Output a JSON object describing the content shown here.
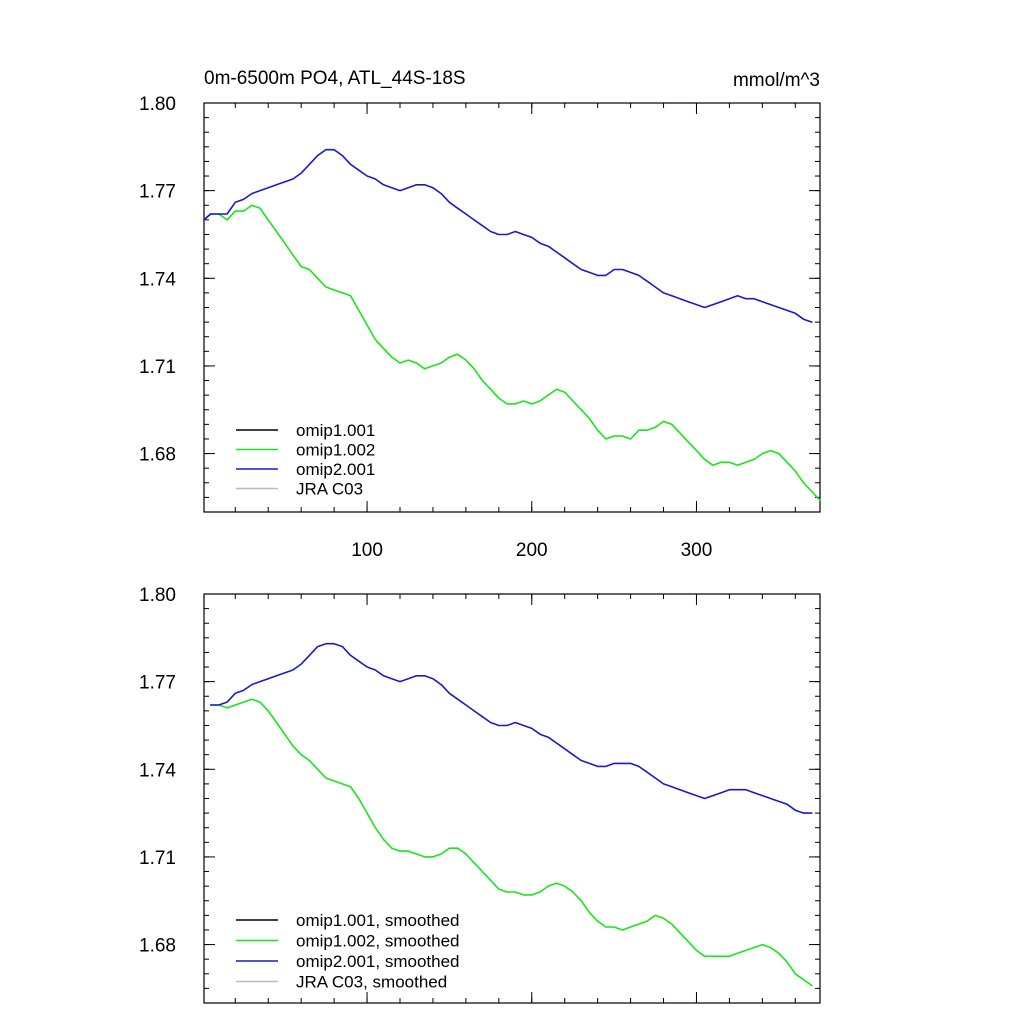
{
  "chart_data": [
    {
      "type": "line",
      "title": "0m-6500m PO4, ATL_44S-18S",
      "units": "mmol/m^3",
      "xlim": [
        1,
        375
      ],
      "ylim": [
        1.66,
        1.8
      ],
      "xticks": [
        100,
        200,
        300
      ],
      "xtick_labels": [
        "100",
        "200",
        "300"
      ],
      "yticks": [
        1.8,
        1.77,
        1.74,
        1.71,
        1.68
      ],
      "ytick_labels": [
        "1.80",
        "1.77",
        "1.74",
        "1.71",
        "1.68"
      ],
      "legend_position": "bottom-left",
      "series": [
        {
          "name": "omip1.001",
          "color": "#000000",
          "style": "raw",
          "visible": false,
          "x": [
            1,
            5,
            10,
            15,
            20,
            25,
            30,
            35,
            40,
            45,
            50,
            55,
            60,
            65,
            70,
            75,
            80,
            85,
            90,
            95,
            100,
            105,
            110,
            115,
            120,
            125,
            130,
            135,
            140,
            145,
            150,
            155,
            160,
            165,
            170,
            175,
            180,
            185,
            190,
            195,
            200,
            205,
            210,
            215,
            220,
            225,
            230,
            235,
            240,
            245,
            250,
            255,
            260,
            265,
            270,
            275,
            280,
            285,
            290,
            295,
            300,
            305,
            310,
            315,
            320,
            325,
            330,
            335,
            340,
            345,
            350,
            355,
            360,
            365,
            370,
            375
          ],
          "values": [
            1.76,
            1.762,
            1.762,
            1.76,
            1.763,
            1.763,
            1.765,
            1.764,
            1.76,
            1.756,
            1.752,
            1.748,
            1.744,
            1.743,
            1.74,
            1.737,
            1.736,
            1.735,
            1.734,
            1.729,
            1.724,
            1.719,
            1.716,
            1.713,
            1.711,
            1.712,
            1.711,
            1.709,
            1.71,
            1.711,
            1.713,
            1.714,
            1.712,
            1.709,
            1.705,
            1.702,
            1.699,
            1.697,
            1.697,
            1.698,
            1.697,
            1.698,
            1.7,
            1.702,
            1.701,
            1.698,
            1.695,
            1.692,
            1.688,
            1.685,
            1.686,
            1.686,
            1.685,
            1.688,
            1.688,
            1.689,
            1.691,
            1.69,
            1.687,
            1.684,
            1.681,
            1.678,
            1.676,
            1.677,
            1.677,
            1.676,
            1.677,
            1.678,
            1.68,
            1.681,
            1.68,
            1.677,
            1.674,
            1.67,
            1.667,
            1.664
          ]
        },
        {
          "name": "omip1.002",
          "color": "#19e619",
          "style": "raw",
          "visible": true,
          "x": [
            1,
            5,
            10,
            15,
            20,
            25,
            30,
            35,
            40,
            45,
            50,
            55,
            60,
            65,
            70,
            75,
            80,
            85,
            90,
            95,
            100,
            105,
            110,
            115,
            120,
            125,
            130,
            135,
            140,
            145,
            150,
            155,
            160,
            165,
            170,
            175,
            180,
            185,
            190,
            195,
            200,
            205,
            210,
            215,
            220,
            225,
            230,
            235,
            240,
            245,
            250,
            255,
            260,
            265,
            270,
            275,
            280,
            285,
            290,
            295,
            300,
            305,
            310,
            315,
            320,
            325,
            330,
            335,
            340,
            345,
            350,
            355,
            360,
            365,
            370,
            375
          ],
          "values": [
            1.76,
            1.762,
            1.762,
            1.76,
            1.763,
            1.763,
            1.765,
            1.764,
            1.76,
            1.756,
            1.752,
            1.748,
            1.744,
            1.743,
            1.74,
            1.737,
            1.736,
            1.735,
            1.734,
            1.729,
            1.724,
            1.719,
            1.716,
            1.713,
            1.711,
            1.712,
            1.711,
            1.709,
            1.71,
            1.711,
            1.713,
            1.714,
            1.712,
            1.709,
            1.705,
            1.702,
            1.699,
            1.697,
            1.697,
            1.698,
            1.697,
            1.698,
            1.7,
            1.702,
            1.701,
            1.698,
            1.695,
            1.692,
            1.688,
            1.685,
            1.686,
            1.686,
            1.685,
            1.688,
            1.688,
            1.689,
            1.691,
            1.69,
            1.687,
            1.684,
            1.681,
            1.678,
            1.676,
            1.677,
            1.677,
            1.676,
            1.677,
            1.678,
            1.68,
            1.681,
            1.68,
            1.677,
            1.674,
            1.67,
            1.667,
            1.664
          ]
        },
        {
          "name": "omip2.001",
          "color": "#1a1acc",
          "style": "raw",
          "visible": true,
          "x": [
            1,
            5,
            10,
            15,
            20,
            25,
            30,
            35,
            40,
            45,
            50,
            55,
            60,
            65,
            70,
            75,
            80,
            85,
            90,
            95,
            100,
            105,
            110,
            115,
            120,
            125,
            130,
            135,
            140,
            145,
            150,
            155,
            160,
            165,
            170,
            175,
            180,
            185,
            190,
            195,
            200,
            205,
            210,
            215,
            220,
            225,
            230,
            235,
            240,
            245,
            250,
            255,
            260,
            265,
            270,
            275,
            280,
            285,
            290,
            295,
            300,
            305,
            310,
            315,
            320,
            325,
            330,
            335,
            340,
            345,
            350,
            355,
            360,
            365,
            370
          ],
          "values": [
            1.76,
            1.762,
            1.762,
            1.762,
            1.766,
            1.767,
            1.769,
            1.77,
            1.771,
            1.772,
            1.773,
            1.774,
            1.776,
            1.779,
            1.782,
            1.784,
            1.784,
            1.782,
            1.779,
            1.777,
            1.775,
            1.774,
            1.772,
            1.771,
            1.77,
            1.771,
            1.772,
            1.772,
            1.771,
            1.769,
            1.766,
            1.764,
            1.762,
            1.76,
            1.758,
            1.756,
            1.755,
            1.755,
            1.756,
            1.755,
            1.754,
            1.752,
            1.751,
            1.749,
            1.747,
            1.745,
            1.743,
            1.742,
            1.741,
            1.741,
            1.743,
            1.743,
            1.742,
            1.741,
            1.739,
            1.737,
            1.735,
            1.734,
            1.733,
            1.732,
            1.731,
            1.73,
            1.731,
            1.732,
            1.733,
            1.734,
            1.733,
            1.733,
            1.732,
            1.731,
            1.73,
            1.729,
            1.728,
            1.726,
            1.725
          ]
        },
        {
          "name": "JRA C03",
          "color": "#bbbbbb",
          "style": "raw",
          "visible": false,
          "x": [],
          "values": []
        }
      ]
    },
    {
      "type": "line",
      "title": "",
      "units": "",
      "xlim": [
        1,
        375
      ],
      "ylim": [
        1.66,
        1.8
      ],
      "xticks": [
        100,
        200,
        300
      ],
      "xtick_labels": [],
      "yticks": [
        1.8,
        1.77,
        1.74,
        1.71,
        1.68
      ],
      "ytick_labels": [
        "1.80",
        "1.77",
        "1.74",
        "1.71",
        "1.68"
      ],
      "legend_position": "bottom-left",
      "series": [
        {
          "name": "omip1.001, smoothed",
          "color": "#000000",
          "style": "smoothed",
          "visible": false,
          "x": [
            5,
            10,
            15,
            20,
            25,
            30,
            35,
            40,
            45,
            50,
            55,
            60,
            65,
            70,
            75,
            80,
            85,
            90,
            95,
            100,
            105,
            110,
            115,
            120,
            125,
            130,
            135,
            140,
            145,
            150,
            155,
            160,
            165,
            170,
            175,
            180,
            185,
            190,
            195,
            200,
            205,
            210,
            215,
            220,
            225,
            230,
            235,
            240,
            245,
            250,
            255,
            260,
            265,
            270,
            275,
            280,
            285,
            290,
            295,
            300,
            305,
            310,
            315,
            320,
            325,
            330,
            335,
            340,
            345,
            350,
            355,
            360,
            365,
            370
          ],
          "values": [
            1.762,
            1.762,
            1.761,
            1.762,
            1.763,
            1.764,
            1.763,
            1.76,
            1.756,
            1.752,
            1.748,
            1.745,
            1.743,
            1.74,
            1.737,
            1.736,
            1.735,
            1.734,
            1.73,
            1.725,
            1.72,
            1.716,
            1.713,
            1.712,
            1.712,
            1.711,
            1.71,
            1.71,
            1.711,
            1.713,
            1.713,
            1.711,
            1.708,
            1.705,
            1.702,
            1.699,
            1.698,
            1.698,
            1.697,
            1.697,
            1.698,
            1.7,
            1.701,
            1.7,
            1.698,
            1.695,
            1.691,
            1.688,
            1.686,
            1.686,
            1.685,
            1.686,
            1.687,
            1.688,
            1.69,
            1.689,
            1.687,
            1.684,
            1.681,
            1.678,
            1.676,
            1.676,
            1.676,
            1.676,
            1.677,
            1.678,
            1.679,
            1.68,
            1.679,
            1.677,
            1.674,
            1.67,
            1.668,
            1.666
          ]
        },
        {
          "name": "omip1.002, smoothed",
          "color": "#19e619",
          "style": "smoothed",
          "visible": true,
          "x": [
            5,
            10,
            15,
            20,
            25,
            30,
            35,
            40,
            45,
            50,
            55,
            60,
            65,
            70,
            75,
            80,
            85,
            90,
            95,
            100,
            105,
            110,
            115,
            120,
            125,
            130,
            135,
            140,
            145,
            150,
            155,
            160,
            165,
            170,
            175,
            180,
            185,
            190,
            195,
            200,
            205,
            210,
            215,
            220,
            225,
            230,
            235,
            240,
            245,
            250,
            255,
            260,
            265,
            270,
            275,
            280,
            285,
            290,
            295,
            300,
            305,
            310,
            315,
            320,
            325,
            330,
            335,
            340,
            345,
            350,
            355,
            360,
            365,
            370
          ],
          "values": [
            1.762,
            1.762,
            1.761,
            1.762,
            1.763,
            1.764,
            1.763,
            1.76,
            1.756,
            1.752,
            1.748,
            1.745,
            1.743,
            1.74,
            1.737,
            1.736,
            1.735,
            1.734,
            1.73,
            1.725,
            1.72,
            1.716,
            1.713,
            1.712,
            1.712,
            1.711,
            1.71,
            1.71,
            1.711,
            1.713,
            1.713,
            1.711,
            1.708,
            1.705,
            1.702,
            1.699,
            1.698,
            1.698,
            1.697,
            1.697,
            1.698,
            1.7,
            1.701,
            1.7,
            1.698,
            1.695,
            1.691,
            1.688,
            1.686,
            1.686,
            1.685,
            1.686,
            1.687,
            1.688,
            1.69,
            1.689,
            1.687,
            1.684,
            1.681,
            1.678,
            1.676,
            1.676,
            1.676,
            1.676,
            1.677,
            1.678,
            1.679,
            1.68,
            1.679,
            1.677,
            1.674,
            1.67,
            1.668,
            1.666
          ]
        },
        {
          "name": "omip2.001, smoothed",
          "color": "#1a1acc",
          "style": "smoothed",
          "visible": true,
          "x": [
            5,
            10,
            15,
            20,
            25,
            30,
            35,
            40,
            45,
            50,
            55,
            60,
            65,
            70,
            75,
            80,
            85,
            90,
            95,
            100,
            105,
            110,
            115,
            120,
            125,
            130,
            135,
            140,
            145,
            150,
            155,
            160,
            165,
            170,
            175,
            180,
            185,
            190,
            195,
            200,
            205,
            210,
            215,
            220,
            225,
            230,
            235,
            240,
            245,
            250,
            255,
            260,
            265,
            270,
            275,
            280,
            285,
            290,
            295,
            300,
            305,
            310,
            315,
            320,
            325,
            330,
            335,
            340,
            345,
            350,
            355,
            360,
            365,
            370
          ],
          "values": [
            1.762,
            1.762,
            1.763,
            1.766,
            1.767,
            1.769,
            1.77,
            1.771,
            1.772,
            1.773,
            1.774,
            1.776,
            1.779,
            1.782,
            1.783,
            1.783,
            1.782,
            1.779,
            1.777,
            1.775,
            1.774,
            1.772,
            1.771,
            1.77,
            1.771,
            1.772,
            1.772,
            1.771,
            1.769,
            1.766,
            1.764,
            1.762,
            1.76,
            1.758,
            1.756,
            1.755,
            1.755,
            1.756,
            1.755,
            1.754,
            1.752,
            1.751,
            1.749,
            1.747,
            1.745,
            1.743,
            1.742,
            1.741,
            1.741,
            1.742,
            1.742,
            1.742,
            1.741,
            1.739,
            1.737,
            1.735,
            1.734,
            1.733,
            1.732,
            1.731,
            1.73,
            1.731,
            1.732,
            1.733,
            1.733,
            1.733,
            1.732,
            1.731,
            1.73,
            1.729,
            1.728,
            1.726,
            1.725,
            1.725
          ]
        },
        {
          "name": "JRA C03, smoothed",
          "color": "#bbbbbb",
          "style": "smoothed",
          "visible": false,
          "x": [],
          "values": []
        }
      ]
    }
  ]
}
